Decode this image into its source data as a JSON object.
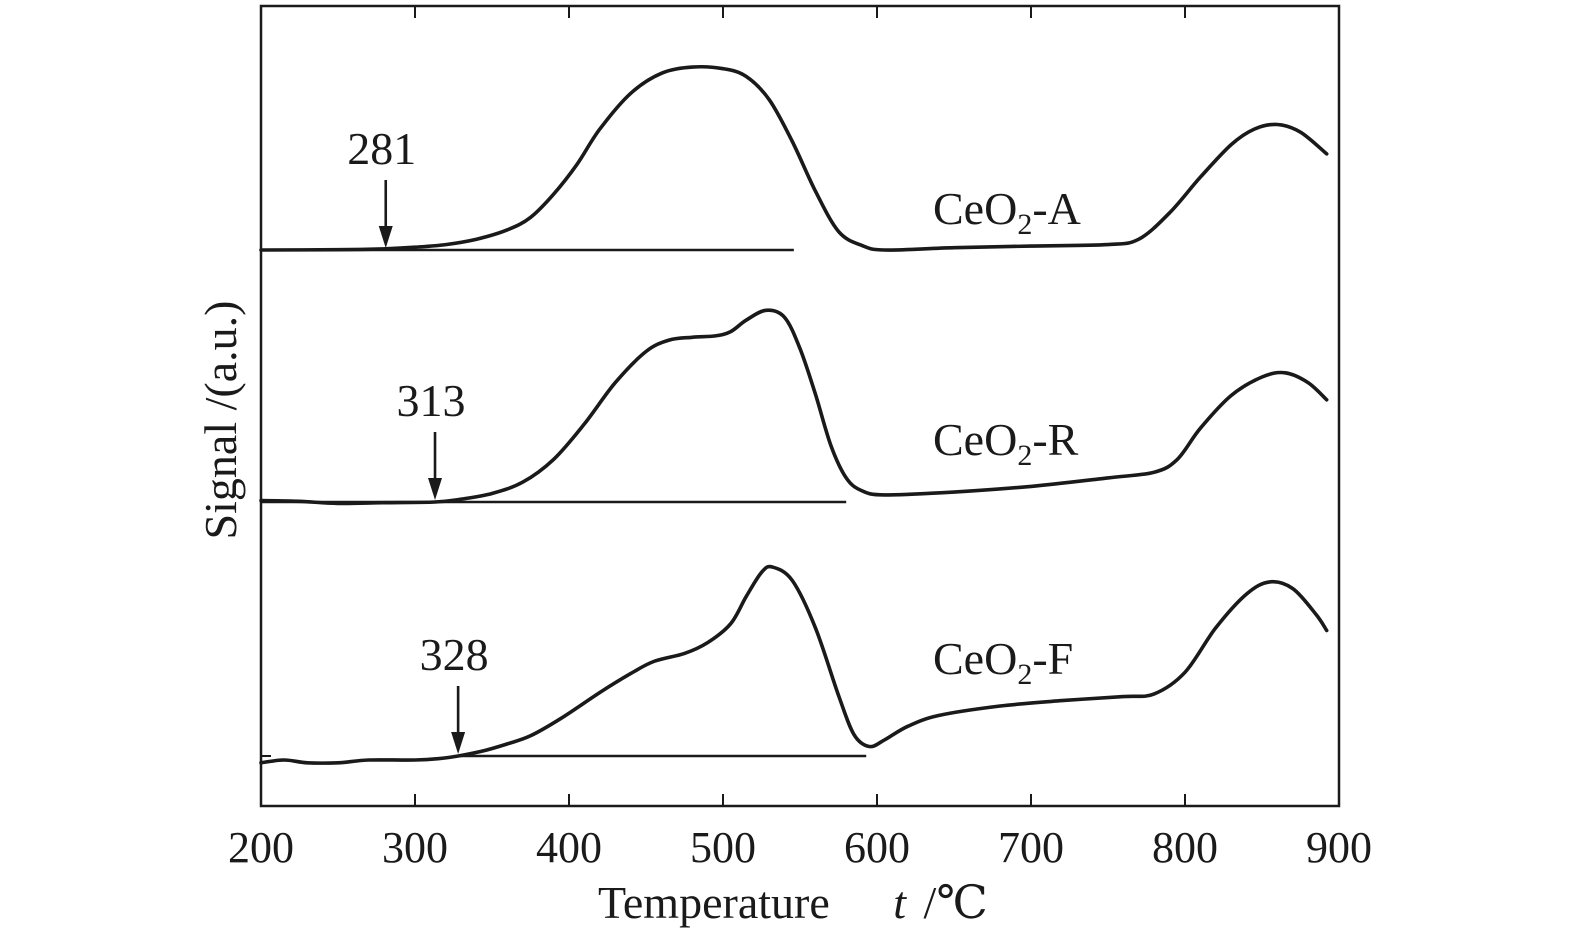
{
  "chart_data": {
    "type": "line",
    "xlabel": "Temperature",
    "xlabel_symbol": "t",
    "xlabel_unit": "/℃",
    "ylabel": "Signal /(a.u.)",
    "xlim": [
      200,
      900
    ],
    "xticks": [
      200,
      300,
      400,
      500,
      600,
      700,
      800,
      900
    ],
    "y_tick_labels": false,
    "grid": false,
    "series": [
      {
        "name": "CeO2-A",
        "label_main": "CeO",
        "label_sub": "2",
        "label_suffix": "-A",
        "onset": "281",
        "onset_temperature": 281,
        "baseline_x": [
          200,
          546
        ],
        "baseline_y": 0,
        "points": [
          [
            200,
            0
          ],
          [
            250,
            0.2
          ],
          [
            281,
            0.8
          ],
          [
            300,
            1.8
          ],
          [
            320,
            3.5
          ],
          [
            340,
            7
          ],
          [
            360,
            13
          ],
          [
            375,
            21
          ],
          [
            390,
            36
          ],
          [
            405,
            55
          ],
          [
            420,
            78
          ],
          [
            440,
            101
          ],
          [
            460,
            114
          ],
          [
            480,
            118
          ],
          [
            500,
            117
          ],
          [
            515,
            112
          ],
          [
            530,
            97
          ],
          [
            545,
            70
          ],
          [
            560,
            38
          ],
          [
            575,
            12
          ],
          [
            590,
            3
          ],
          [
            605,
            0
          ],
          [
            650,
            1.5
          ],
          [
            700,
            2.5
          ],
          [
            750,
            3.5
          ],
          [
            770,
            7
          ],
          [
            790,
            24
          ],
          [
            810,
            47
          ],
          [
            830,
            68
          ],
          [
            845,
            78
          ],
          [
            860,
            81
          ],
          [
            875,
            76
          ],
          [
            892,
            62
          ]
        ]
      },
      {
        "name": "CeO2-R",
        "label_main": "CeO",
        "label_sub": "2",
        "label_suffix": "-R",
        "onset": "313",
        "onset_temperature": 313,
        "baseline_x": [
          200,
          580
        ],
        "baseline_y": 0,
        "points": [
          [
            200,
            1
          ],
          [
            225,
            0.5
          ],
          [
            250,
            -1
          ],
          [
            280,
            -0.5
          ],
          [
            313,
            0
          ],
          [
            330,
            2
          ],
          [
            350,
            6
          ],
          [
            370,
            14
          ],
          [
            390,
            30
          ],
          [
            410,
            55
          ],
          [
            430,
            84
          ],
          [
            450,
            106
          ],
          [
            465,
            114
          ],
          [
            480,
            116
          ],
          [
            495,
            117
          ],
          [
            505,
            120
          ],
          [
            515,
            128
          ],
          [
            528,
            135
          ],
          [
            540,
            130
          ],
          [
            550,
            108
          ],
          [
            560,
            76
          ],
          [
            570,
            40
          ],
          [
            580,
            17
          ],
          [
            590,
            8
          ],
          [
            605,
            5
          ],
          [
            650,
            7
          ],
          [
            700,
            11
          ],
          [
            750,
            17
          ],
          [
            780,
            21
          ],
          [
            795,
            30
          ],
          [
            810,
            52
          ],
          [
            830,
            75
          ],
          [
            850,
            88
          ],
          [
            865,
            91
          ],
          [
            880,
            84
          ],
          [
            892,
            72
          ]
        ]
      },
      {
        "name": "CeO2-F",
        "label_main": "CeO",
        "label_sub": "2",
        "label_suffix": "-F",
        "onset": "328",
        "onset_temperature": 328,
        "baseline_x": [
          328,
          593
        ],
        "baseline_y": 0,
        "points": [
          [
            200,
            -5
          ],
          [
            215,
            -3
          ],
          [
            230,
            -5
          ],
          [
            250,
            -5
          ],
          [
            270,
            -3
          ],
          [
            300,
            -3
          ],
          [
            315,
            -2
          ],
          [
            328,
            0
          ],
          [
            345,
            4
          ],
          [
            360,
            9
          ],
          [
            375,
            15
          ],
          [
            395,
            28
          ],
          [
            420,
            47
          ],
          [
            440,
            61
          ],
          [
            455,
            70
          ],
          [
            475,
            76
          ],
          [
            490,
            84
          ],
          [
            505,
            98
          ],
          [
            515,
            118
          ],
          [
            525,
            136
          ],
          [
            532,
            140
          ],
          [
            545,
            130
          ],
          [
            560,
            95
          ],
          [
            575,
            45
          ],
          [
            585,
            16
          ],
          [
            595,
            7
          ],
          [
            605,
            12
          ],
          [
            620,
            22
          ],
          [
            640,
            30
          ],
          [
            680,
            37
          ],
          [
            720,
            41
          ],
          [
            760,
            44
          ],
          [
            780,
            46
          ],
          [
            800,
            62
          ],
          [
            820,
            95
          ],
          [
            840,
            120
          ],
          [
            855,
            129
          ],
          [
            870,
            124
          ],
          [
            885,
            105
          ],
          [
            892,
            93
          ]
        ]
      }
    ]
  }
}
